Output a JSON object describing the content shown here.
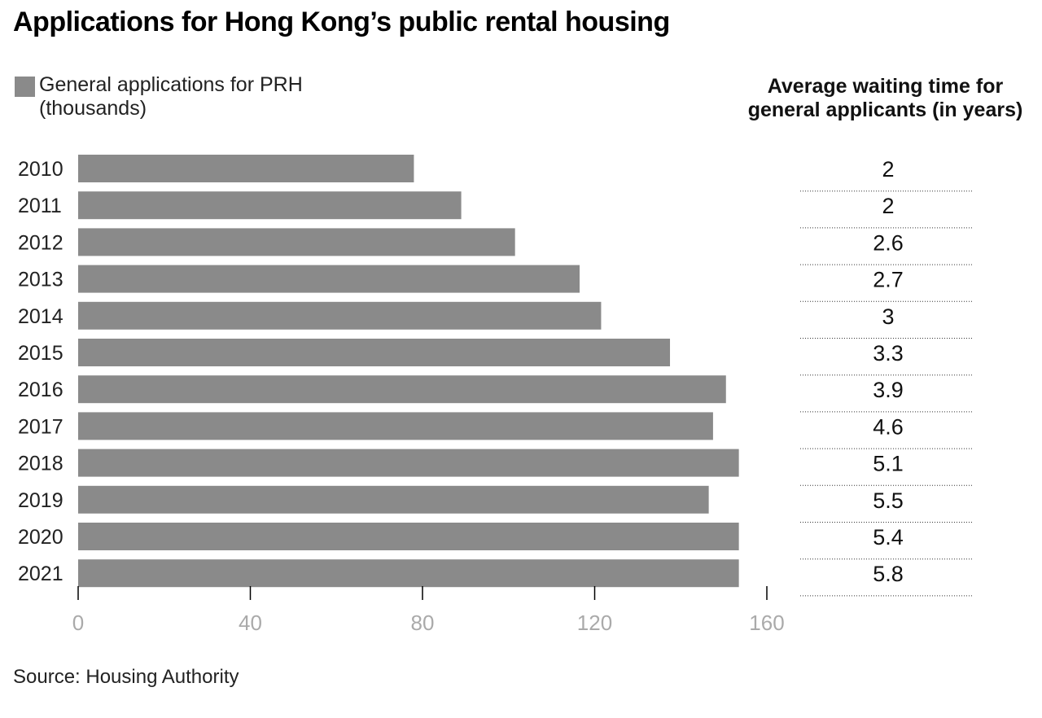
{
  "title": "Applications for Hong Kong’s public rental housing",
  "legend": {
    "label": "General applications for PRH (thousands)",
    "color": "#8a8a8a"
  },
  "side_title": "Average waiting time for general applicants (in years)",
  "source": "Source: Housing Authority",
  "chart_data": {
    "type": "bar",
    "orientation": "horizontal",
    "title": "Applications for Hong Kong’s public rental housing",
    "categories": [
      "2010",
      "2011",
      "2012",
      "2013",
      "2014",
      "2015",
      "2016",
      "2017",
      "2018",
      "2019",
      "2020",
      "2021"
    ],
    "series": [
      {
        "name": "General applications for PRH (thousands)",
        "values": [
          78,
          89,
          101.5,
          116.5,
          121.5,
          137.5,
          150.5,
          147.5,
          153.5,
          146.5,
          153.5,
          153.5
        ],
        "color": "#8a8a8a"
      }
    ],
    "xlim": [
      0,
      160
    ],
    "xticks": [
      0,
      40,
      80,
      120,
      160
    ],
    "grid": false,
    "legend_position": "top-left",
    "waiting_time": {
      "label": "Average waiting time for general applicants (in years)",
      "values": [
        "2",
        "2",
        "2.6",
        "2.7",
        "3",
        "3.3",
        "3.9",
        "4.6",
        "5.1",
        "5.5",
        "5.4",
        "5.8"
      ]
    }
  }
}
